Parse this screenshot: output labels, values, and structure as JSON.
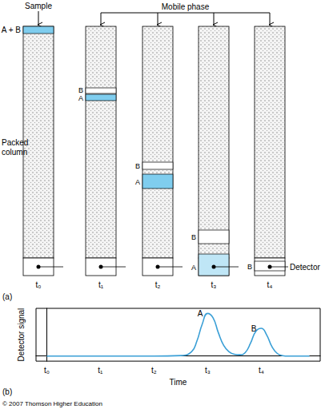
{
  "diagram": {
    "panel_label": "(a)",
    "sample_label": "Sample",
    "mobile_phase_label": "Mobile phase",
    "column_label": "Packed column",
    "detector_label": "Detector",
    "columns": [
      {
        "time": "t₀",
        "bands": [
          {
            "label": "A + B"
          }
        ]
      },
      {
        "time": "t₁",
        "bands": [
          {
            "label": "B"
          },
          {
            "label": "A"
          }
        ]
      },
      {
        "time": "t₂",
        "bands": [
          {
            "label": "B"
          },
          {
            "label": "A"
          }
        ]
      },
      {
        "time": "t₃",
        "bands": [
          {
            "label": "B"
          },
          {
            "label": "A"
          }
        ]
      },
      {
        "time": "t₄",
        "bands": [
          {
            "label": "B"
          }
        ]
      }
    ]
  },
  "chart_panel_label": "(b)",
  "credit": "© 2007 Thomson Higher Education",
  "chart_data": {
    "type": "line",
    "xlabel": "Time",
    "ylabel": "Detector signal",
    "x": [
      0,
      1,
      2,
      2.5,
      2.7,
      2.8,
      2.9,
      3.0,
      3.1,
      3.2,
      3.3,
      3.4,
      3.5,
      3.6,
      3.7,
      3.8,
      3.9,
      4.0,
      4.1,
      4.2,
      4.3,
      4.4,
      4.5,
      4.9
    ],
    "values": [
      0,
      0,
      0,
      0.01,
      0.1,
      0.35,
      0.75,
      1.0,
      0.9,
      0.55,
      0.25,
      0.1,
      0.04,
      0.03,
      0.08,
      0.3,
      0.58,
      0.65,
      0.5,
      0.22,
      0.06,
      0.01,
      0,
      0
    ],
    "color": "#3a9fd6",
    "marker": "none",
    "line_style": "solid",
    "xlim": [
      -0.2,
      5.1
    ],
    "xticks": [
      {
        "value": 0,
        "label": "t₀"
      },
      {
        "value": 1,
        "label": "t₁"
      },
      {
        "value": 2,
        "label": "t₂"
      },
      {
        "value": 3,
        "label": "t₃"
      },
      {
        "value": 4,
        "label": "t₄"
      }
    ],
    "ylim": [
      -0.12,
      1.12
    ],
    "tick_labels": "x",
    "grid": false,
    "annotations": [
      {
        "text": "A",
        "x": 3.0,
        "y": 1.0
      },
      {
        "text": "B",
        "x": 4.0,
        "y": 0.65
      }
    ]
  }
}
